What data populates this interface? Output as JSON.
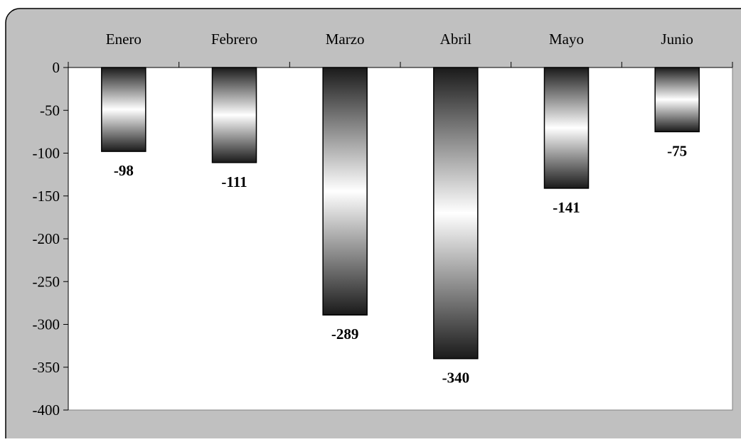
{
  "chart_data": {
    "type": "bar",
    "title": "",
    "xlabel": "",
    "ylabel": "",
    "categories": [
      "Enero",
      "Febrero",
      "Marzo",
      "Abril",
      "Mayo",
      "Junio"
    ],
    "values": [
      -98,
      -111,
      -289,
      -340,
      -141,
      -75
    ],
    "value_labels": [
      "-98",
      "-111",
      "-289",
      "-340",
      "-141",
      "-75"
    ],
    "ylim": [
      -400,
      0
    ],
    "yticks": [
      0,
      -50,
      -100,
      -150,
      -200,
      -250,
      -300,
      -350,
      -400
    ],
    "ytick_labels": [
      "0",
      "-50",
      "-100",
      "-150",
      "-200",
      "-250",
      "-300",
      "-350",
      "-400"
    ],
    "grid": false,
    "legend": "none",
    "category_axis_position": "top",
    "colors": {
      "chart_area": "#c0c0c0",
      "plot_area": "#ffffff",
      "bar_dark": "#1a1a1a",
      "bar_light": "#ffffff",
      "border": "#000000"
    }
  }
}
